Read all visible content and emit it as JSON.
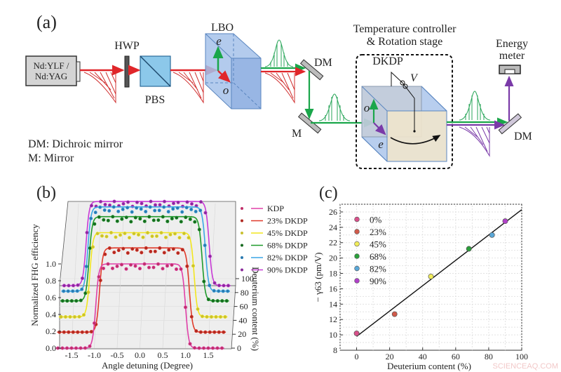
{
  "panel_a": {
    "label": "(a)",
    "laser": [
      "Nd:YLF /",
      "Nd:YAG"
    ],
    "hwp": "HWP",
    "pbs": "PBS",
    "lbo": "LBO",
    "lbo_axes": {
      "e": "e",
      "o": "o"
    },
    "dm1": "DM",
    "m": "M",
    "stage_title": [
      "Temperature controller",
      "& Rotation stage"
    ],
    "dkdp": "DKDP",
    "voltage": "V",
    "dkdp_axes": {
      "o": "o",
      "e": "e"
    },
    "energy_meter": [
      "Energy",
      "meter"
    ],
    "dm2": "DM",
    "legend": [
      "DM: Dichroic mirror",
      "M: Mirror"
    ],
    "colors": {
      "fundamental": "#e0262a",
      "second_harmonic": "#1aa64a",
      "fourth_harmonic": "#7a3aa8",
      "crystal": "#9fbfe6"
    }
  },
  "chart_data": [
    {
      "panel_label": "(b)",
      "type": "line",
      "xlabel": "Angle detuning (Degree)",
      "ylabel": "Normalized FHG efficiency",
      "zlabel": "Deuterium content (%)",
      "xlim": [
        -1.85,
        1.85
      ],
      "xticks": [
        "-1.5",
        "-1.0",
        "-0.5",
        "0.0",
        "0.5",
        "1.0",
        "1.5"
      ],
      "xtick_values": [
        -1.5,
        -1.0,
        -0.5,
        0.0,
        0.5,
        1.0,
        1.5
      ],
      "yticks": [
        "0.0",
        "0.2",
        "0.4",
        "0.6",
        "0.8",
        "1.0"
      ],
      "ytick_values": [
        0,
        0.2,
        0.4,
        0.6,
        0.8,
        1.0
      ],
      "zticks": [
        "0",
        "20",
        "40",
        "60",
        "80",
        "100"
      ],
      "ztick_values": [
        0,
        20,
        40,
        60,
        80,
        100
      ],
      "grid": true,
      "legend_placement": "right",
      "series": [
        {
          "name": "KDP",
          "deuterium": 0,
          "left_edge": -0.97,
          "right_edge": 1.0,
          "peak": 1.0,
          "color": "#e040a8",
          "marker": "#c0306a"
        },
        {
          "name": "23% DKDP",
          "deuterium": 23,
          "left_edge": -0.92,
          "right_edge": 1.05,
          "peak": 1.0,
          "color": "#e03a2a",
          "marker": "#b02a22"
        },
        {
          "name": "45% DKDP",
          "deuterium": 45,
          "left_edge": -1.17,
          "right_edge": 1.12,
          "peak": 1.0,
          "color": "#f2e61e",
          "marker": "#c8c030"
        },
        {
          "name": "68% DKDP",
          "deuterium": 68,
          "left_edge": -1.22,
          "right_edge": 1.26,
          "peak": 1.0,
          "color": "#1e9a2a",
          "marker": "#176a20"
        },
        {
          "name": "82% DKDP",
          "deuterium": 82,
          "left_edge": -1.27,
          "right_edge": 1.31,
          "peak": 1.0,
          "color": "#3aa6e6",
          "marker": "#2a7ab0"
        },
        {
          "name": "90% DKDP",
          "deuterium": 90,
          "left_edge": -1.32,
          "right_edge": 1.38,
          "peak": 1.0,
          "color": "#c83ad6",
          "marker": "#8a2a9a"
        }
      ]
    },
    {
      "panel_label": "(c)",
      "type": "scatter",
      "xlabel": "Deuterium content (%)",
      "ylabel": "− γ63 (pm/V)",
      "xlim": [
        -10,
        100
      ],
      "ylim": [
        8,
        27
      ],
      "xticks": [
        "0",
        "20",
        "40",
        "60",
        "80",
        "100"
      ],
      "xtick_values": [
        0,
        20,
        40,
        60,
        80,
        100
      ],
      "yticks": [
        "8",
        "10",
        "12",
        "14",
        "16",
        "18",
        "20",
        "22",
        "24",
        "26"
      ],
      "ytick_values": [
        8,
        10,
        12,
        14,
        16,
        18,
        20,
        22,
        24,
        26
      ],
      "grid": true,
      "legend_placement": "top-left",
      "points": [
        {
          "name": "0%",
          "x": 0,
          "y": 10.2,
          "color": "#d8508a"
        },
        {
          "name": "23%",
          "x": 23,
          "y": 12.7,
          "color": "#d05a4a"
        },
        {
          "name": "45%",
          "x": 45,
          "y": 17.6,
          "color": "#f0ec5a"
        },
        {
          "name": "68%",
          "x": 68,
          "y": 21.2,
          "color": "#2aa03a"
        },
        {
          "name": "82%",
          "x": 82,
          "y": 23.0,
          "color": "#5aa8d8"
        },
        {
          "name": "90%",
          "x": 90,
          "y": 24.8,
          "color": "#b040c8"
        }
      ],
      "fit_line": {
        "x": [
          0,
          100
        ],
        "y": [
          9.8,
          26.3
        ],
        "color": "#111111"
      }
    }
  ],
  "watermark": "SCIENCEAQ.COM"
}
